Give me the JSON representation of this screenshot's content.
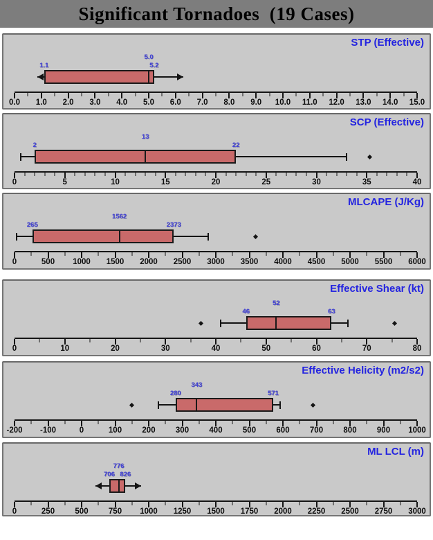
{
  "title": "Significant Tornadoes  (19 Cases)",
  "colors": {
    "title_band": "#7d7d7d",
    "panel_background": "#c9c9c9",
    "panel_title_blue": "#2424e0",
    "value_label_blue": "#4545d8",
    "box_fill": "#c96a6a",
    "line_black": "#141414"
  },
  "chart_data": [
    {
      "type": "box",
      "title": "STP (Effective)",
      "xlim": [
        0,
        15
      ],
      "major_step": 1,
      "minor_step": 0.5,
      "tick_labels": [
        "0.0",
        "1.0",
        "2.0",
        "3.0",
        "4.0",
        "5.0",
        "6.0",
        "7.0",
        "8.0",
        "9.0",
        "10.0",
        "11.0",
        "12.0",
        "13.0",
        "14.0",
        "15.0"
      ],
      "q1": 1.1,
      "median": 5.0,
      "q3": 5.2,
      "whisker_low": 0.85,
      "whisker_high": 6.3,
      "whisker_style": "arrow",
      "labels": {
        "q1": "1.1",
        "median": "5.0",
        "q3": "5.2"
      },
      "outliers": []
    },
    {
      "type": "box",
      "title": "SCP (Effective)",
      "xlim": [
        0,
        40
      ],
      "major_step": 5,
      "minor_step": 1,
      "tick_labels": [
        "0",
        "5",
        "10",
        "15",
        "20",
        "25",
        "30",
        "35",
        "40"
      ],
      "q1": 2,
      "median": 13,
      "q3": 22,
      "whisker_low": 0.6,
      "whisker_high": 33,
      "whisker_style": "cap",
      "labels": {
        "q1": "2",
        "median": "13",
        "q3": "22"
      },
      "outliers": [
        35.3
      ]
    },
    {
      "type": "box",
      "title": "MLCAPE (J/Kg)",
      "xlim": [
        0,
        6000
      ],
      "major_step": 500,
      "minor_step": 250,
      "tick_labels": [
        "0",
        "500",
        "1000",
        "1500",
        "2000",
        "2500",
        "3000",
        "3500",
        "4000",
        "4500",
        "5000",
        "5500",
        "6000"
      ],
      "q1": 265,
      "median": 1562,
      "q3": 2373,
      "whisker_low": 30,
      "whisker_high": 2890,
      "whisker_style": "cap",
      "labels": {
        "q1": "265",
        "median": "1562",
        "q3": "2373"
      },
      "outliers": [
        3590
      ]
    },
    {
      "type": "box",
      "title": "Effective Shear (kt)",
      "xlim": [
        0,
        80
      ],
      "major_step": 10,
      "minor_step": 5,
      "tick_labels": [
        "0",
        "10",
        "20",
        "30",
        "40",
        "50",
        "60",
        "70",
        "80"
      ],
      "q1": 46,
      "median": 52,
      "q3": 63,
      "whisker_low": 41,
      "whisker_high": 66.3,
      "whisker_style": "cap",
      "labels": {
        "q1": "46",
        "median": "52",
        "q3": "63"
      },
      "outliers": [
        37,
        75.5
      ]
    },
    {
      "type": "box",
      "title": "Effective Helicity (m2/s2)",
      "xlim": [
        -200,
        1000
      ],
      "major_step": 100,
      "minor_step": 50,
      "tick_labels": [
        "-200",
        "-100",
        "0",
        "100",
        "200",
        "300",
        "400",
        "500",
        "600",
        "700",
        "800",
        "900",
        "1000"
      ],
      "q1": 280,
      "median": 343,
      "q3": 571,
      "whisker_low": 228,
      "whisker_high": 592,
      "whisker_style": "cap",
      "labels": {
        "q1": "280",
        "median": "343",
        "q3": "571"
      },
      "outliers": [
        150,
        690
      ]
    },
    {
      "type": "box",
      "title": "ML LCL (m)",
      "xlim": [
        0,
        3000
      ],
      "major_step": 250,
      "minor_step": 125,
      "tick_labels": [
        "0",
        "250",
        "500",
        "750",
        "1000",
        "1250",
        "1500",
        "1750",
        "2000",
        "2250",
        "2500",
        "2750",
        "3000"
      ],
      "q1": 706,
      "median": 776,
      "q3": 826,
      "whisker_low": 605,
      "whisker_high": 945,
      "whisker_style": "arrow",
      "labels": {
        "q1": "706",
        "median": "776",
        "q3": "826"
      },
      "outliers": []
    }
  ]
}
